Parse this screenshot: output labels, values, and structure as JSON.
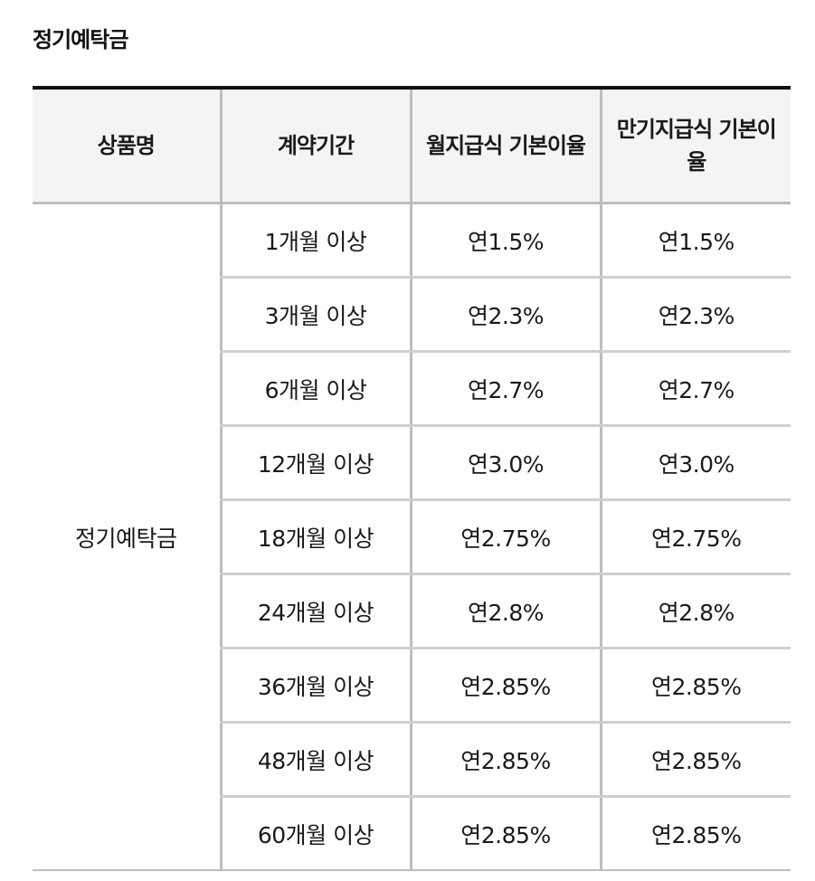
{
  "section": {
    "title": "정기예탁금"
  },
  "table": {
    "headers": [
      "상품명",
      "계약기간",
      "월지급식 기본이율",
      "만기지급식 기본이율"
    ],
    "product_name": "정기예탁금",
    "rows": [
      {
        "period": "1개월 이상",
        "monthly_rate": "연1.5%",
        "maturity_rate": "연1.5%"
      },
      {
        "period": "3개월 이상",
        "monthly_rate": "연2.3%",
        "maturity_rate": "연2.3%"
      },
      {
        "period": "6개월 이상",
        "monthly_rate": "연2.7%",
        "maturity_rate": "연2.7%"
      },
      {
        "period": "12개월 이상",
        "monthly_rate": "연3.0%",
        "maturity_rate": "연3.0%"
      },
      {
        "period": "18개월 이상",
        "monthly_rate": "연2.75%",
        "maturity_rate": "연2.75%"
      },
      {
        "period": "24개월 이상",
        "monthly_rate": "연2.8%",
        "maturity_rate": "연2.8%"
      },
      {
        "period": "36개월 이상",
        "monthly_rate": "연2.85%",
        "maturity_rate": "연2.85%"
      },
      {
        "period": "48개월 이상",
        "monthly_rate": "연2.85%",
        "maturity_rate": "연2.85%"
      },
      {
        "period": "60개월 이상",
        "monthly_rate": "연2.85%",
        "maturity_rate": "연2.85%"
      }
    ]
  }
}
